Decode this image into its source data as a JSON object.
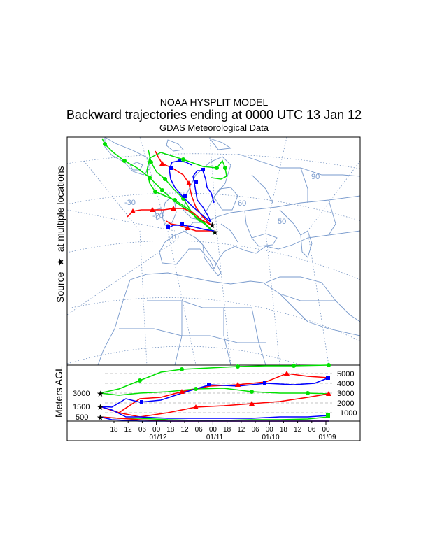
{
  "header": {
    "line1": "NOAA HYSPLIT MODEL",
    "line2": "Backward trajectories ending at 0000 UTC 13 Jan 12",
    "line3": "GDAS Meteorological Data"
  },
  "side_label": {
    "prefix": "Source",
    "star": "★",
    "suffix": "at multiple locations"
  },
  "map": {
    "graticule_labels": [
      "-30",
      "-20",
      "-10",
      "60",
      "50",
      "90"
    ]
  },
  "height_panel": {
    "ylabel": "Meters AGL",
    "start_levels": [
      "3000",
      "1500",
      "500"
    ],
    "right_ticks": [
      "5000",
      "4000",
      "3000",
      "2000",
      "1000"
    ],
    "hour_labels": [
      "18",
      "12",
      "06",
      "00",
      "18",
      "12",
      "06",
      "00",
      "18",
      "12",
      "06",
      "00",
      "18",
      "12",
      "06",
      "00"
    ],
    "date_labels": [
      "01/12",
      "01/11",
      "01/10",
      "01/09"
    ]
  },
  "colors": {
    "red": "#ff0000",
    "blue": "#0000ff",
    "green": "#00e000",
    "map": "#7799cc",
    "grid": "#6688bb"
  }
}
